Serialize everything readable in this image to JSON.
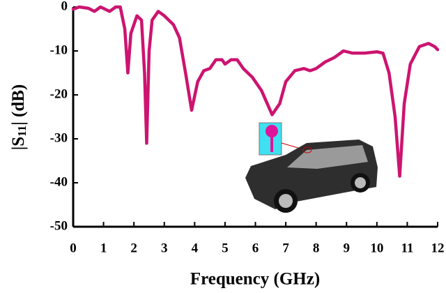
{
  "chart_data": {
    "type": "line",
    "x_label": "Frequency (GHz)",
    "y_label": [
      "|S",
      "11",
      "| (dB)"
    ],
    "xlim": [
      0,
      12
    ],
    "xticks": [
      0,
      1,
      2,
      3,
      4,
      5,
      6,
      7,
      8,
      9,
      10,
      11,
      12
    ],
    "ylim": [
      -50,
      0
    ],
    "yticks": [
      0,
      -10,
      -20,
      -30,
      -40,
      -50
    ],
    "series": [
      {
        "color": "#cc1470",
        "x": [
          0,
          0.2,
          0.5,
          0.7,
          0.9,
          1.2,
          1.4,
          1.55,
          1.7,
          1.8,
          1.9,
          2.1,
          2.25,
          2.35,
          2.42,
          2.5,
          2.6,
          2.8,
          3.0,
          3.3,
          3.5,
          3.7,
          3.9,
          4.1,
          4.3,
          4.5,
          4.7,
          4.9,
          5.0,
          5.2,
          5.4,
          5.6,
          5.9,
          6.2,
          6.55,
          6.8,
          7.0,
          7.3,
          7.6,
          7.8,
          8.0,
          8.3,
          8.6,
          8.9,
          9.2,
          9.6,
          10.0,
          10.2,
          10.4,
          10.6,
          10.75,
          10.9,
          11.1,
          11.4,
          11.7,
          11.9,
          12.0
        ],
        "values": [
          -0.5,
          0,
          -0.3,
          -1,
          0,
          -1,
          0,
          0,
          -5,
          -15,
          -6,
          -2,
          -3,
          -15,
          -31,
          -10,
          -3,
          -1,
          -2,
          -4,
          -7,
          -15,
          -23.5,
          -17,
          -14.5,
          -14,
          -12,
          -12,
          -13,
          -12,
          -12,
          -14,
          -16,
          -19,
          -24.5,
          -22,
          -17,
          -14.5,
          -14,
          -14.5,
          -14,
          -12.5,
          -11.5,
          -10,
          -10.5,
          -10.5,
          -10.2,
          -10.5,
          -15,
          -25,
          -38.5,
          -22,
          -13,
          -9,
          -8.3,
          -9,
          -9.7
        ]
      }
    ]
  }
}
